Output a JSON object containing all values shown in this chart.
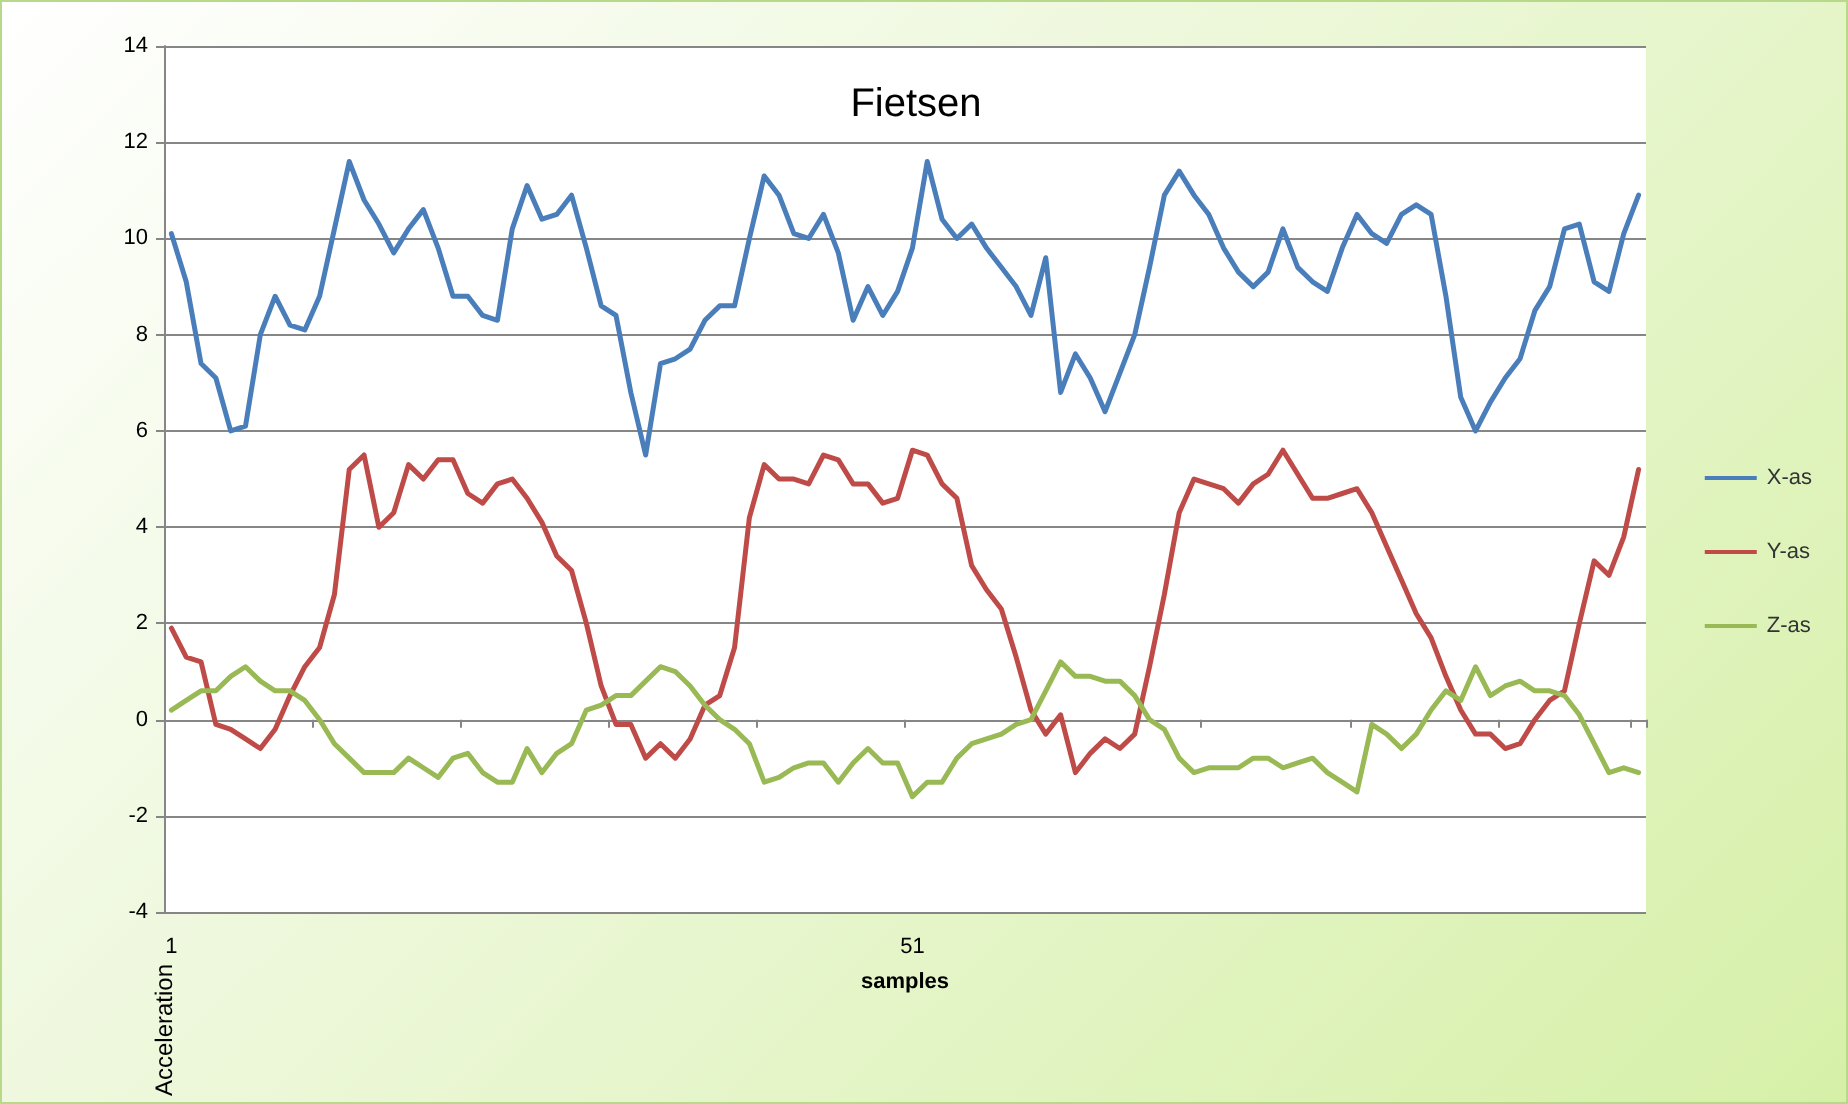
{
  "chart_data": {
    "type": "line",
    "title": "Fietsen",
    "xlabel": "samples",
    "ylabel": "Acceleration",
    "categories": [
      "1",
      null,
      null,
      null,
      null,
      null,
      null,
      null,
      null,
      null,
      null,
      null,
      null,
      null,
      null,
      null,
      null,
      null,
      null,
      null,
      null,
      null,
      null,
      null,
      null,
      null,
      null,
      null,
      null,
      null,
      null,
      null,
      null,
      null,
      null,
      null,
      null,
      null,
      null,
      null,
      null,
      null,
      null,
      null,
      null,
      null,
      null,
      null,
      null,
      null,
      "51",
      null,
      null,
      null,
      null,
      null,
      null,
      null,
      null,
      null,
      null,
      null,
      null,
      null,
      null,
      null,
      null,
      null,
      null,
      null,
      null,
      null,
      null,
      null,
      null,
      null,
      null,
      null,
      null,
      null,
      null,
      null,
      null,
      null,
      null,
      null,
      null,
      null,
      null,
      null,
      null,
      null,
      null,
      null,
      null,
      null,
      null,
      null,
      null,
      null
    ],
    "series": [
      {
        "name": "X-as",
        "color": "#4a7ebb",
        "values": [
          10.1,
          9.1,
          7.4,
          7.1,
          6.0,
          6.1,
          8.0,
          8.8,
          8.2,
          8.1,
          8.8,
          10.2,
          11.6,
          10.8,
          10.3,
          9.7,
          10.2,
          10.6,
          9.8,
          8.8,
          8.8,
          8.4,
          8.3,
          10.2,
          11.1,
          10.4,
          10.5,
          10.9,
          9.8,
          8.6,
          8.4,
          6.8,
          5.5,
          7.4,
          7.5,
          7.7,
          8.3,
          8.6,
          8.6,
          10.0,
          11.3,
          10.9,
          10.1,
          10.0,
          10.5,
          9.7,
          8.3,
          9.0,
          8.4,
          8.9,
          9.8,
          11.6,
          10.4,
          10.0,
          10.3,
          9.8,
          9.4,
          9.0,
          8.4,
          9.6,
          6.8,
          7.6,
          7.1,
          6.4,
          7.2,
          8.0,
          9.4,
          10.9,
          11.4,
          10.9,
          10.5,
          9.8,
          9.3,
          9.0,
          9.3,
          10.2,
          9.4,
          9.1,
          8.9,
          9.8,
          10.5,
          10.1,
          9.9,
          10.5,
          10.7,
          10.5,
          8.8,
          6.7,
          6.0,
          6.6,
          7.1,
          7.5,
          8.5,
          9.0,
          10.2,
          10.3,
          9.1,
          8.9,
          10.1,
          10.9
        ]
      },
      {
        "name": "Y-as",
        "color": "#be4b48",
        "values": [
          1.9,
          1.3,
          1.2,
          -0.1,
          -0.2,
          -0.4,
          -0.6,
          -0.2,
          0.5,
          1.1,
          1.5,
          2.6,
          5.2,
          5.5,
          4.0,
          4.3,
          5.3,
          5.0,
          5.4,
          5.4,
          4.7,
          4.5,
          4.9,
          5.0,
          4.6,
          4.1,
          3.4,
          3.1,
          2.0,
          0.7,
          -0.1,
          -0.1,
          -0.8,
          -0.5,
          -0.8,
          -0.4,
          0.3,
          0.5,
          1.5,
          4.2,
          5.3,
          5.0,
          5.0,
          4.9,
          5.5,
          5.4,
          4.9,
          4.9,
          4.5,
          4.6,
          5.6,
          5.5,
          4.9,
          4.6,
          3.2,
          2.7,
          2.3,
          1.3,
          0.2,
          -0.3,
          0.1,
          -1.1,
          -0.7,
          -0.4,
          -0.6,
          -0.3,
          1.1,
          2.6,
          4.3,
          5.0,
          4.9,
          4.8,
          4.5,
          4.9,
          5.1,
          5.6,
          5.1,
          4.6,
          4.6,
          4.7,
          4.8,
          4.3,
          3.6,
          2.9,
          2.2,
          1.7,
          0.9,
          0.2,
          -0.3,
          -0.3,
          -0.6,
          -0.5,
          0.0,
          0.4,
          0.6,
          2.0,
          3.3,
          3.0,
          3.8,
          5.2
        ]
      },
      {
        "name": "Z-as",
        "color": "#98b954",
        "values": [
          0.2,
          0.4,
          0.6,
          0.6,
          0.9,
          1.1,
          0.8,
          0.6,
          0.6,
          0.4,
          0.0,
          -0.5,
          -0.8,
          -1.1,
          -1.1,
          -1.1,
          -0.8,
          -1.0,
          -1.2,
          -0.8,
          -0.7,
          -1.1,
          -1.3,
          -1.3,
          -0.6,
          -1.1,
          -0.7,
          -0.5,
          0.2,
          0.3,
          0.5,
          0.5,
          0.8,
          1.1,
          1.0,
          0.7,
          0.3,
          0.0,
          -0.2,
          -0.5,
          -1.3,
          -1.2,
          -1.0,
          -0.9,
          -0.9,
          -1.3,
          -0.9,
          -0.6,
          -0.9,
          -0.9,
          -1.6,
          -1.3,
          -1.3,
          -0.8,
          -0.5,
          -0.4,
          -0.3,
          -0.1,
          0.0,
          0.6,
          1.2,
          0.9,
          0.9,
          0.8,
          0.8,
          0.5,
          0.0,
          -0.2,
          -0.8,
          -1.1,
          -1.0,
          -1.0,
          -1.0,
          -0.8,
          -0.8,
          -1.0,
          -0.9,
          -0.8,
          -1.1,
          -1.3,
          -1.5,
          -0.1,
          -0.3,
          -0.6,
          -0.3,
          0.2,
          0.6,
          0.4,
          1.1,
          0.5,
          0.7,
          0.8,
          0.6,
          0.6,
          0.5,
          0.1,
          -0.5,
          -1.1,
          -1.0,
          -1.1
        ]
      }
    ],
    "ylim": [
      -4,
      14
    ],
    "yticks": [
      -4,
      -2,
      0,
      2,
      4,
      6,
      8,
      10,
      12,
      14
    ],
    "grid": "y",
    "legend": "right",
    "marker": "none",
    "line_style": "solid"
  }
}
